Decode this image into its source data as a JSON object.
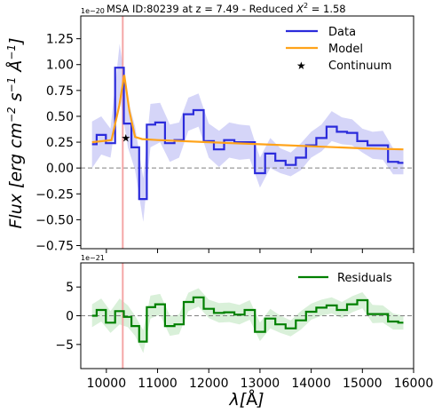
{
  "chart_data": [
    {
      "type": "line",
      "title": "MSA ID:80239 at z = 7.49 - Reduced X² = 1.58",
      "title_prefix": "MSA ID:80239 at z = 7.49 - Reduced ",
      "title_chi": "X",
      "title_chi_exp": "2",
      "title_suffix": " = 1.58",
      "offset_label": "1e−20",
      "ylabel": "Flux [erg cm⁻² s⁻¹ Å⁻¹]",
      "ylabel_parts": {
        "a": "Flux [erg cm",
        "e1": "−2",
        "b": " s",
        "e2": "−1",
        "c": " Å",
        "e3": "−1",
        "d": "]"
      },
      "xlim": [
        9500,
        16000
      ],
      "ylim": [
        -0.78,
        1.47
      ],
      "yticks": [
        -0.75,
        -0.5,
        -0.25,
        0.0,
        0.25,
        0.5,
        0.75,
        1.0,
        1.25
      ],
      "ytick_labels": [
        "−0.75",
        "−0.50",
        "−0.25",
        "0.00",
        "0.25",
        "0.50",
        "0.75",
        "1.00",
        "1.25"
      ],
      "xticks": [
        10000,
        11000,
        12000,
        13000,
        14000,
        15000,
        16000
      ],
      "zero_line": true,
      "vline_x": 10320,
      "colors": {
        "data": "#2b2bdb",
        "model": "#ffa31a",
        "vline": "#f4a6a6",
        "band": "#b3b3f2",
        "zero": "#808080"
      },
      "legend": {
        "position": "top-right",
        "entries": [
          "Data",
          "Model",
          "Continuum"
        ]
      },
      "series": [
        {
          "name": "Data",
          "style": "step",
          "x": [
            9720,
            9900,
            10080,
            10260,
            10420,
            10560,
            10720,
            10860,
            11050,
            11240,
            11420,
            11600,
            11800,
            12000,
            12200,
            12400,
            12600,
            12800,
            13000,
            13200,
            13400,
            13600,
            13800,
            14000,
            14200,
            14400,
            14600,
            14800,
            15000,
            15200,
            15400,
            15600,
            15800
          ],
          "y": [
            0.23,
            0.32,
            0.24,
            0.97,
            0.43,
            0.2,
            -0.3,
            0.42,
            0.44,
            0.24,
            0.27,
            0.52,
            0.56,
            0.26,
            0.18,
            0.27,
            0.25,
            0.25,
            -0.05,
            0.14,
            0.07,
            0.03,
            0.1,
            0.22,
            0.29,
            0.4,
            0.35,
            0.34,
            0.26,
            0.22,
            0.22,
            0.06,
            0.05
          ],
          "err_lo": [
            0.0,
            0.13,
            0.1,
            0.7,
            0.2,
            -0.02,
            -0.52,
            0.2,
            0.25,
            0.06,
            0.1,
            0.36,
            0.4,
            0.1,
            0.01,
            0.1,
            0.08,
            0.09,
            -0.19,
            0.0,
            -0.05,
            -0.08,
            -0.02,
            0.1,
            0.16,
            0.26,
            0.23,
            0.22,
            0.15,
            0.09,
            0.08,
            -0.06,
            -0.06
          ],
          "err_hi": [
            0.45,
            0.5,
            0.38,
            1.2,
            0.66,
            0.4,
            -0.1,
            0.62,
            0.63,
            0.42,
            0.44,
            0.68,
            0.72,
            0.43,
            0.36,
            0.44,
            0.42,
            0.41,
            0.1,
            0.29,
            0.19,
            0.15,
            0.24,
            0.35,
            0.42,
            0.55,
            0.49,
            0.47,
            0.38,
            0.35,
            0.36,
            0.19,
            0.17
          ]
        },
        {
          "name": "Model",
          "style": "line",
          "x": [
            9720,
            10100,
            10250,
            10350,
            10450,
            10560,
            10700,
            11000,
            12000,
            13000,
            14000,
            15000,
            15800
          ],
          "y": [
            0.25,
            0.27,
            0.6,
            0.9,
            0.55,
            0.3,
            0.28,
            0.27,
            0.25,
            0.23,
            0.21,
            0.19,
            0.18
          ]
        },
        {
          "name": "Continuum",
          "style": "marker",
          "x": [
            10380
          ],
          "y": [
            0.29
          ]
        }
      ]
    },
    {
      "type": "line",
      "offset_label": "1e−21",
      "xlabel": "λ[Å]",
      "xlabel_parts": {
        "a": "λ[",
        "b": "Å",
        "c": "]"
      },
      "xlim": [
        9500,
        16000
      ],
      "ylim": [
        -9.2,
        9.2
      ],
      "yticks": [
        -5,
        0,
        5
      ],
      "ytick_labels": [
        "−5",
        "0",
        "5"
      ],
      "xticks": [
        10000,
        11000,
        12000,
        13000,
        14000,
        15000,
        16000
      ],
      "xtick_labels": [
        "10000",
        "11000",
        "12000",
        "13000",
        "14000",
        "15000",
        "16000"
      ],
      "zero_line": true,
      "vline_x": 10320,
      "colors": {
        "residuals": "#008000",
        "band": "#bfe6bf",
        "vline": "#f4a6a6",
        "zero": "#808080"
      },
      "legend": {
        "position": "top-right",
        "entries": [
          "Residuals"
        ]
      },
      "series": [
        {
          "name": "Residuals",
          "style": "step",
          "x": [
            9720,
            9900,
            10080,
            10260,
            10420,
            10560,
            10720,
            10860,
            11050,
            11240,
            11420,
            11600,
            11800,
            12000,
            12200,
            12400,
            12600,
            12800,
            13000,
            13200,
            13400,
            13600,
            13800,
            14000,
            14200,
            14400,
            14600,
            14800,
            15000,
            15200,
            15400,
            15600,
            15800
          ],
          "y": [
            0.0,
            1.0,
            -1.2,
            0.8,
            -0.2,
            -1.8,
            -4.5,
            1.5,
            2.0,
            -1.8,
            -1.5,
            2.4,
            3.2,
            1.2,
            0.5,
            0.6,
            0.2,
            1.0,
            -2.8,
            -0.5,
            -1.5,
            -2.2,
            -0.8,
            0.7,
            1.4,
            1.8,
            1.0,
            2.0,
            2.7,
            0.3,
            0.3,
            -1.0,
            -1.2
          ],
          "err_lo": [
            -2.0,
            -1.0,
            -3.0,
            -1.5,
            -2.0,
            -3.5,
            -6.5,
            -0.5,
            0.2,
            -3.5,
            -3.2,
            0.8,
            1.6,
            -0.4,
            -1.2,
            -1.1,
            -1.5,
            -0.7,
            -4.4,
            -2.2,
            -3.0,
            -3.6,
            -2.4,
            -0.7,
            0.0,
            0.4,
            -0.4,
            0.6,
            1.3,
            -1.3,
            -1.2,
            -2.4,
            -2.4
          ],
          "err_hi": [
            2.0,
            3.0,
            0.8,
            3.0,
            1.8,
            0.0,
            -2.5,
            3.5,
            3.8,
            0.0,
            0.2,
            4.0,
            4.8,
            2.8,
            2.2,
            2.3,
            1.9,
            2.7,
            -1.2,
            1.2,
            0.0,
            -0.8,
            0.8,
            2.1,
            2.8,
            3.2,
            2.4,
            3.4,
            4.1,
            1.9,
            1.8,
            0.4,
            0.0
          ]
        }
      ]
    }
  ]
}
